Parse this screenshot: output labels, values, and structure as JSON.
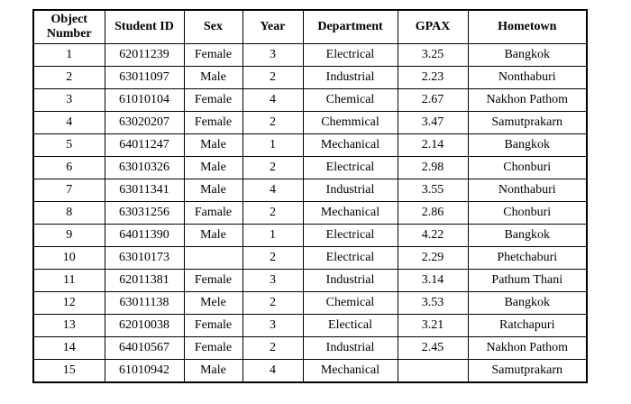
{
  "colors": {
    "background": "#ffffff",
    "border": "#000000",
    "text": "#000000"
  },
  "table": {
    "columns": [
      "Object Number",
      "Student ID",
      "Sex",
      "Year",
      "Department",
      "GPAX",
      "Hometown"
    ],
    "rows": [
      [
        "1",
        "62011239",
        "Female",
        "3",
        "Electrical",
        "3.25",
        "Bangkok"
      ],
      [
        "2",
        "63011097",
        "Male",
        "2",
        "Industrial",
        "2.23",
        "Nonthaburi"
      ],
      [
        "3",
        "61010104",
        "Female",
        "4",
        "Chemical",
        "2.67",
        "Nakhon Pathom"
      ],
      [
        "4",
        "63020207",
        "Female",
        "2",
        "Chemmical",
        "3.47",
        "Samutprakarn"
      ],
      [
        "5",
        "64011247",
        "Male",
        "1",
        "Mechanical",
        "2.14",
        "Bangkok"
      ],
      [
        "6",
        "63010326",
        "Male",
        "2",
        "Electrical",
        "2.98",
        "Chonburi"
      ],
      [
        "7",
        "63011341",
        "Male",
        "4",
        "Industrial",
        "3.55",
        "Nonthaburi"
      ],
      [
        "8",
        "63031256",
        "Famale",
        "2",
        "Mechanical",
        "2.86",
        "Chonburi"
      ],
      [
        "9",
        "64011390",
        "Male",
        "1",
        "Electrical",
        "4.22",
        "Bangkok"
      ],
      [
        "10",
        "63010173",
        "",
        "2",
        "Electrical",
        "2.29",
        "Phetchaburi"
      ],
      [
        "11",
        "62011381",
        "Female",
        "3",
        "Industrial",
        "3.14",
        "Pathum Thani"
      ],
      [
        "12",
        "63011138",
        "Mele",
        "2",
        "Chemical",
        "3.53",
        "Bangkok"
      ],
      [
        "13",
        "62010038",
        "Female",
        "3",
        "Electical",
        "3.21",
        "Ratchapuri"
      ],
      [
        "14",
        "64010567",
        "Female",
        "2",
        "Industrial",
        "2.45",
        "Nakhon Pathom"
      ],
      [
        "15",
        "61010942",
        "Male",
        "4",
        "Mechanical",
        "",
        "Samutprakarn"
      ]
    ]
  }
}
